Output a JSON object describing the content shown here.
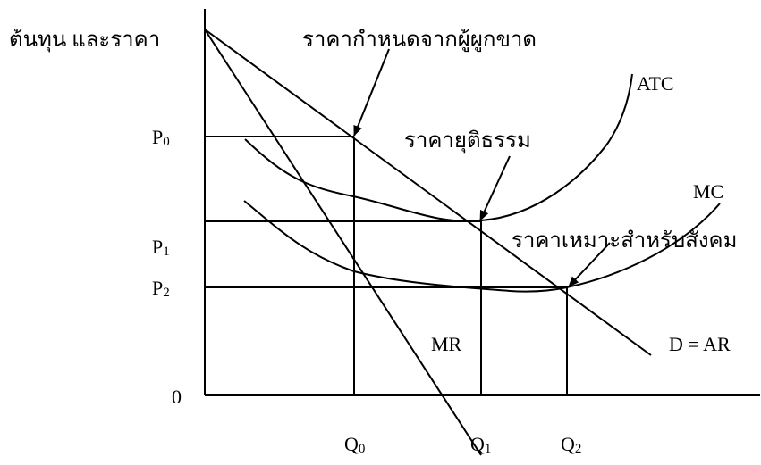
{
  "diagram": {
    "y_axis_label": "ต้นทุน และราคา",
    "origin_label": "0",
    "price_labels": [
      {
        "main": "P",
        "sub": "0"
      },
      {
        "main": "P",
        "sub": "1"
      },
      {
        "main": "P",
        "sub": "2"
      }
    ],
    "quantity_labels": [
      {
        "main": "Q",
        "sub": "0"
      },
      {
        "main": "Q",
        "sub": "1"
      },
      {
        "main": "Q",
        "sub": "2"
      }
    ],
    "curve_labels": {
      "atc": "ATC",
      "mc": "MC",
      "mr": "MR",
      "demand": "D = AR"
    },
    "annotations": {
      "monopoly_price": "ราคากำหนดจากผู้ผูกขาด",
      "fair_price": "ราคายุติธรรม",
      "social_price": "ราคาเหมาะสำหรับสังคม"
    }
  }
}
